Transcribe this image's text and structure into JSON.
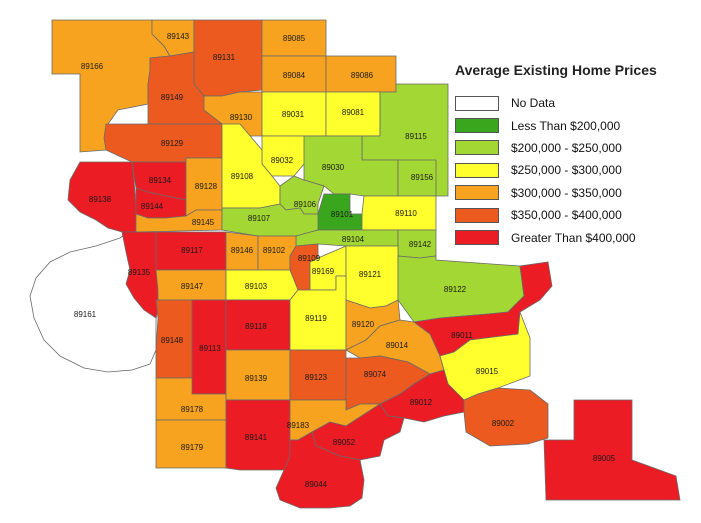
{
  "title": "Average Existing Home Prices",
  "legend": [
    {
      "label": "No Data",
      "color": "#ffffff"
    },
    {
      "label": "Less Than $200,000",
      "color": "#3aa61e"
    },
    {
      "label": "$200,000 - $250,000",
      "color": "#a3d733"
    },
    {
      "label": "$250,000 - $300,000",
      "color": "#ffff2e"
    },
    {
      "label": "$300,000 - $350,000",
      "color": "#f7a31f"
    },
    {
      "label": "$350,000 - $400,000",
      "color": "#ec5a1f"
    },
    {
      "label": "Greater Than $400,000",
      "color": "#ec1c24"
    }
  ],
  "zip_codes": [
    {
      "zip": "89166",
      "price_range": "$300,000 - $350,000"
    },
    {
      "zip": "89143",
      "price_range": "$300,000 - $350,000"
    },
    {
      "zip": "89131",
      "price_range": "$350,000 - $400,000"
    },
    {
      "zip": "89085",
      "price_range": "$300,000 - $350,000"
    },
    {
      "zip": "89084",
      "price_range": "$300,000 - $350,000"
    },
    {
      "zip": "89086",
      "price_range": "$300,000 - $350,000"
    },
    {
      "zip": "89149",
      "price_range": "$350,000 - $400,000"
    },
    {
      "zip": "89130",
      "price_range": "$300,000 - $350,000"
    },
    {
      "zip": "89031",
      "price_range": "$250,000 - $300,000"
    },
    {
      "zip": "89081",
      "price_range": "$250,000 - $300,000"
    },
    {
      "zip": "89115",
      "price_range": "$200,000 - $250,000"
    },
    {
      "zip": "89129",
      "price_range": "$350,000 - $400,000"
    },
    {
      "zip": "89032",
      "price_range": "$250,000 - $300,000"
    },
    {
      "zip": "89030",
      "price_range": "$200,000 - $250,000"
    },
    {
      "zip": "89156",
      "price_range": "$200,000 - $250,000"
    },
    {
      "zip": "89138",
      "price_range": "Greater Than $400,000"
    },
    {
      "zip": "89134",
      "price_range": "Greater Than $400,000"
    },
    {
      "zip": "89144",
      "price_range": "Greater Than $400,000"
    },
    {
      "zip": "89128",
      "price_range": "$300,000 - $350,000"
    },
    {
      "zip": "89108",
      "price_range": "$250,000 - $300,000"
    },
    {
      "zip": "89106",
      "price_range": "$200,000 - $250,000"
    },
    {
      "zip": "89101",
      "price_range": "Less Than $200,000"
    },
    {
      "zip": "89110",
      "price_range": "$250,000 - $300,000"
    },
    {
      "zip": "89145",
      "price_range": "$300,000 - $350,000"
    },
    {
      "zip": "89107",
      "price_range": "$200,000 - $250,000"
    },
    {
      "zip": "89104",
      "price_range": "$200,000 - $250,000"
    },
    {
      "zip": "89142",
      "price_range": "$200,000 - $250,000"
    },
    {
      "zip": "89135",
      "price_range": "Greater Than $400,000"
    },
    {
      "zip": "89117",
      "price_range": "Greater Than $400,000"
    },
    {
      "zip": "89146",
      "price_range": "$300,000 - $350,000"
    },
    {
      "zip": "89102",
      "price_range": "$300,000 - $350,000"
    },
    {
      "zip": "89109",
      "price_range": "$350,000 - $400,000"
    },
    {
      "zip": "89169",
      "price_range": "$250,000 - $300,000"
    },
    {
      "zip": "89121",
      "price_range": "$250,000 - $300,000"
    },
    {
      "zip": "89122",
      "price_range": "$200,000 - $250,000"
    },
    {
      "zip": "89161",
      "price_range": "No Data"
    },
    {
      "zip": "89147",
      "price_range": "$300,000 - $350,000"
    },
    {
      "zip": "89103",
      "price_range": "$250,000 - $300,000"
    },
    {
      "zip": "89148",
      "price_range": "$350,000 - $400,000"
    },
    {
      "zip": "89113",
      "price_range": "Greater Than $400,000"
    },
    {
      "zip": "89118",
      "price_range": "Greater Than $400,000"
    },
    {
      "zip": "89119",
      "price_range": "$250,000 - $300,000"
    },
    {
      "zip": "89120",
      "price_range": "$300,000 - $350,000"
    },
    {
      "zip": "89014",
      "price_range": "$300,000 - $350,000"
    },
    {
      "zip": "89011",
      "price_range": "Greater Than $400,000"
    },
    {
      "zip": "89139",
      "price_range": "$300,000 - $350,000"
    },
    {
      "zip": "89123",
      "price_range": "$350,000 - $400,000"
    },
    {
      "zip": "89074",
      "price_range": "$350,000 - $400,000"
    },
    {
      "zip": "89015",
      "price_range": "$250,000 - $300,000"
    },
    {
      "zip": "89178",
      "price_range": "$300,000 - $350,000"
    },
    {
      "zip": "89012",
      "price_range": "Greater Than $400,000"
    },
    {
      "zip": "89002",
      "price_range": "$350,000 - $400,000"
    },
    {
      "zip": "89179",
      "price_range": "$300,000 - $350,000"
    },
    {
      "zip": "89141",
      "price_range": "Greater Than $400,000"
    },
    {
      "zip": "89183",
      "price_range": "$300,000 - $350,000"
    },
    {
      "zip": "89052",
      "price_range": "Greater Than $400,000"
    },
    {
      "zip": "89005",
      "price_range": "Greater Than $400,000"
    },
    {
      "zip": "89044",
      "price_range": "Greater Than $400,000"
    }
  ]
}
